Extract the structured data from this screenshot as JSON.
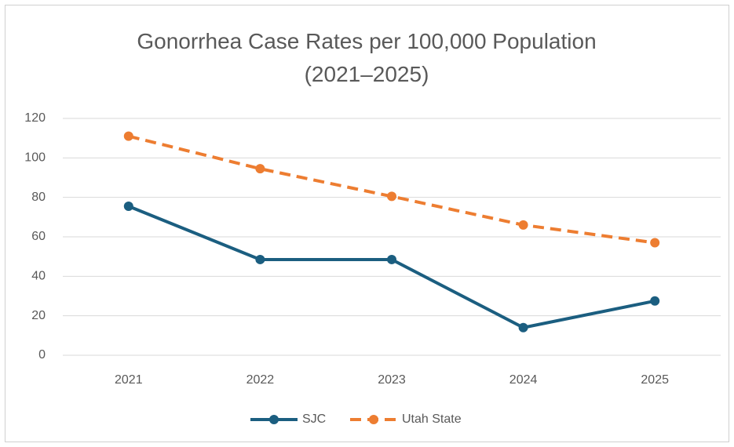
{
  "chart_data": {
    "type": "line",
    "title": "Gonorrhea Case Rates per 100,000 Population (2021–2025)",
    "categories": [
      "2021",
      "2022",
      "2023",
      "2024",
      "2025"
    ],
    "series": [
      {
        "name": "SJC",
        "color": "#1b5e80",
        "dash": false,
        "values": [
          75.5,
          48.5,
          48.5,
          14,
          27.5
        ]
      },
      {
        "name": "Utah State",
        "color": "#ed7d31",
        "dash": true,
        "values": [
          111,
          94.5,
          80.5,
          66,
          57
        ]
      }
    ],
    "ylim": [
      0,
      120
    ],
    "yticks": [
      0,
      20,
      40,
      60,
      80,
      100,
      120
    ],
    "grid": true,
    "legend": "bottom"
  }
}
